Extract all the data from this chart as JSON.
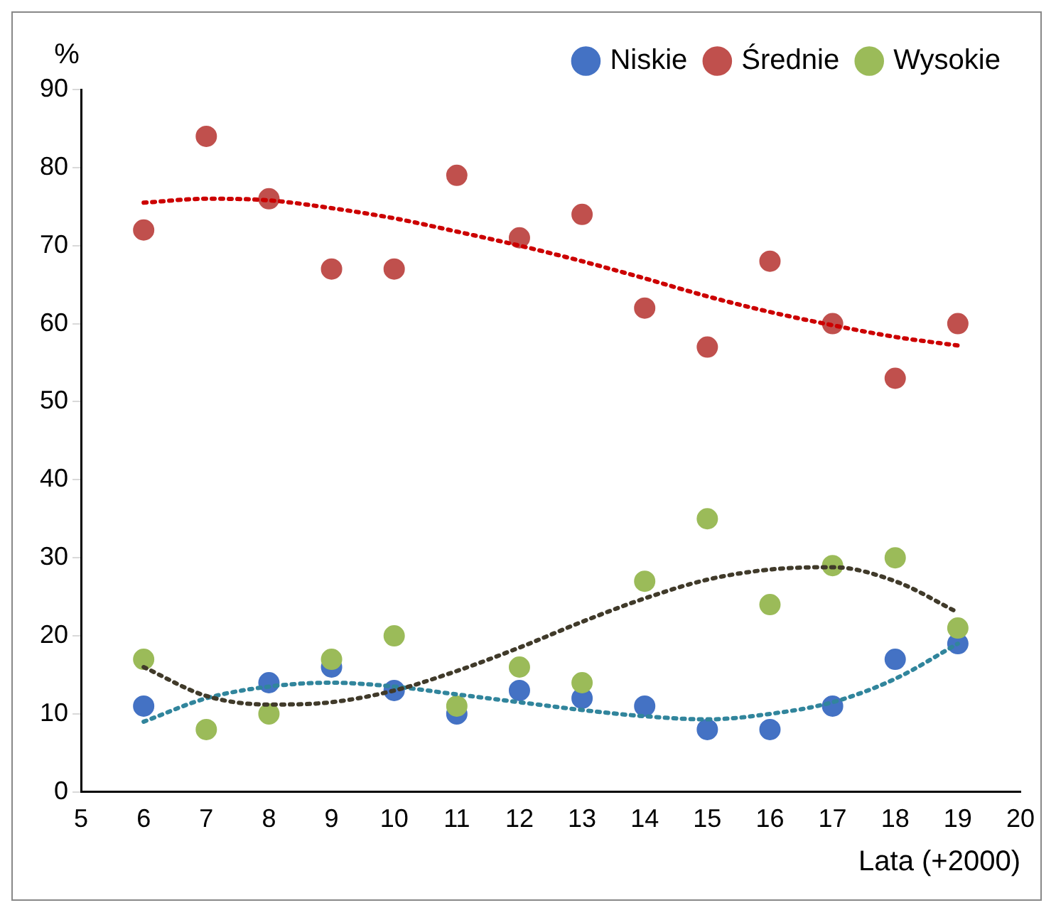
{
  "chart_data": {
    "type": "scatter",
    "xlabel": "Lata (+2000)",
    "ylabel": "%",
    "x": [
      6,
      7,
      8,
      9,
      10,
      11,
      12,
      13,
      14,
      15,
      16,
      17,
      18,
      19
    ],
    "xlim": [
      5,
      20
    ],
    "xticks": [
      5,
      6,
      7,
      8,
      9,
      10,
      11,
      12,
      13,
      14,
      15,
      16,
      17,
      18,
      19,
      20
    ],
    "ylim": [
      0,
      90
    ],
    "yticks": [
      0,
      10,
      20,
      30,
      40,
      50,
      60,
      70,
      80,
      90
    ],
    "grid": false,
    "legend": "top right",
    "marker": "circle",
    "series": [
      {
        "name": "Niskie",
        "color": "#4472c4",
        "values": [
          11,
          null,
          14,
          16,
          13,
          10,
          13,
          12,
          11,
          8,
          8,
          11,
          17,
          19
        ]
      },
      {
        "name": "Średnie",
        "color": "#c0504d",
        "values": [
          72,
          84,
          76,
          67,
          67,
          79,
          71,
          74,
          62,
          57,
          68,
          60,
          53,
          60
        ]
      },
      {
        "name": "Wysokie",
        "color": "#9bbb59",
        "values": [
          17,
          8,
          10,
          17,
          20,
          11,
          16,
          14,
          27,
          35,
          24,
          29,
          30,
          21
        ]
      },
      {
        "type": "line",
        "color": "#31859c",
        "line_style": "dotted",
        "marker": "none",
        "values": [
          9,
          12,
          13.5,
          14,
          13.5,
          12.5,
          11.5,
          10.5,
          9.7,
          9.3,
          10,
          11.5,
          14.5,
          19
        ]
      },
      {
        "type": "line",
        "color": "#cc0000",
        "line_style": "dotted",
        "marker": "none",
        "values": [
          75.5,
          76,
          75.8,
          74.8,
          73.5,
          71.8,
          70,
          68,
          65.8,
          63.5,
          61.5,
          59.8,
          58.3,
          57.2
        ]
      },
      {
        "type": "line",
        "color": "#403a2a",
        "line_style": "dotted",
        "marker": "none",
        "values": [
          16,
          12.3,
          11.2,
          11.5,
          13,
          15.5,
          18.5,
          21.8,
          24.8,
          27.2,
          28.5,
          28.8,
          27,
          23
        ]
      }
    ]
  }
}
